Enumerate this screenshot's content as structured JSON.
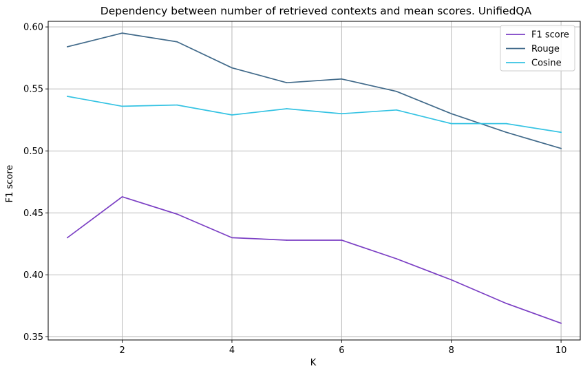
{
  "chart_data": {
    "type": "line",
    "title": "Dependency between number of retrieved contexts and mean scores. UnifiedQA",
    "xlabel": "K",
    "ylabel": "F1 score",
    "x": [
      1,
      2,
      3,
      4,
      5,
      6,
      7,
      8,
      9,
      10
    ],
    "xlim": [
      0.65,
      10.35
    ],
    "ylim": [
      0.3475,
      0.6045
    ],
    "xticks": [
      2,
      4,
      6,
      8,
      10
    ],
    "xtick_labels": [
      "2",
      "4",
      "6",
      "8",
      "10"
    ],
    "yticks": [
      0.35,
      0.4,
      0.45,
      0.5,
      0.55,
      0.6
    ],
    "ytick_labels": [
      "0.35",
      "0.40",
      "0.45",
      "0.50",
      "0.55",
      "0.60"
    ],
    "grid": true,
    "legend_position": "top-right",
    "series": [
      {
        "name": "F1 score",
        "color": "#7b3fc4",
        "values": [
          0.43,
          0.463,
          0.449,
          0.43,
          0.428,
          0.428,
          0.413,
          0.396,
          0.377,
          0.361
        ]
      },
      {
        "name": "Rouge",
        "color": "#416a8a",
        "values": [
          0.584,
          0.595,
          0.588,
          0.567,
          0.555,
          0.558,
          0.548,
          0.53,
          0.515,
          0.502
        ]
      },
      {
        "name": "Cosine",
        "color": "#35c3e3",
        "values": [
          0.544,
          0.536,
          0.537,
          0.529,
          0.534,
          0.53,
          0.533,
          0.522,
          0.522,
          0.515
        ]
      }
    ]
  }
}
